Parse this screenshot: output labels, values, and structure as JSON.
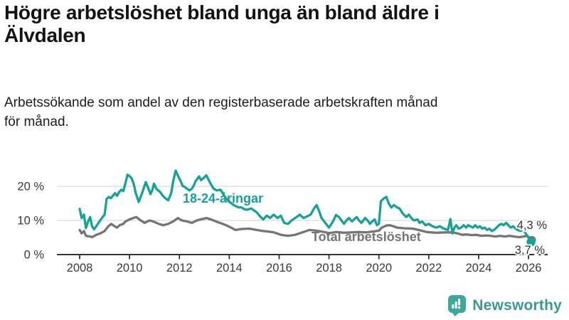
{
  "header": {
    "title_lines": [
      "Högre arbetslöshet bland unga än bland äldre i",
      "Älvdalen"
    ],
    "subtitle_lines": [
      "Arbetssökande som andel av den registerbaserade arbetskraften månad",
      "för månad."
    ]
  },
  "chart_data": {
    "type": "line",
    "title": "Högre arbetslöshet bland unga än bland äldre i Älvdalen",
    "subtitle": "Arbetssökande som andel av den registerbaserade arbetskraften månad för månad.",
    "xlabel": "",
    "ylabel": "",
    "grid": "horizontal",
    "x_axis": {
      "range": [
        2007.6,
        2026.8
      ],
      "tick_years": [
        2008,
        2010,
        2012,
        2014,
        2016,
        2018,
        2020,
        2022,
        2024,
        2026
      ]
    },
    "y_axis": {
      "range": [
        0,
        25
      ],
      "ticks": [
        {
          "v": 0,
          "label": "0 %"
        },
        {
          "v": 10,
          "label": "10 %"
        },
        {
          "v": 20,
          "label": "20 %"
        }
      ]
    },
    "colors": {
      "young": "#16a296",
      "total": "#757575",
      "axis": "#333333",
      "grid": "#d9d9d9",
      "end_label": "#333333"
    },
    "series": [
      {
        "name": "Total arbetslöshet",
        "key": "total",
        "color": "#757575",
        "last_value_label": "4,3 %",
        "last_value": 4.3,
        "end_dot": [
          2026.14,
          4.3
        ],
        "points": [
          [
            2008.0,
            7.2
          ],
          [
            2008.08,
            6.2
          ],
          [
            2008.17,
            6.9
          ],
          [
            2008.25,
            5.5
          ],
          [
            2008.42,
            5.3
          ],
          [
            2008.5,
            5.1
          ],
          [
            2008.67,
            5.8
          ],
          [
            2008.83,
            6.2
          ],
          [
            2009.0,
            6.9
          ],
          [
            2009.15,
            8.3
          ],
          [
            2009.27,
            9.0
          ],
          [
            2009.4,
            8.3
          ],
          [
            2009.5,
            7.9
          ],
          [
            2009.6,
            8.6
          ],
          [
            2009.75,
            9.0
          ],
          [
            2009.84,
            9.7
          ],
          [
            2010.0,
            10.3
          ],
          [
            2010.15,
            10.7
          ],
          [
            2010.27,
            11.0
          ],
          [
            2010.45,
            10.0
          ],
          [
            2010.6,
            9.3
          ],
          [
            2010.8,
            10.0
          ],
          [
            2010.95,
            9.7
          ],
          [
            2011.17,
            9.0
          ],
          [
            2011.35,
            8.6
          ],
          [
            2011.55,
            9.0
          ],
          [
            2011.75,
            9.7
          ],
          [
            2011.94,
            10.7
          ],
          [
            2012.1,
            10.0
          ],
          [
            2012.3,
            9.7
          ],
          [
            2012.5,
            9.3
          ],
          [
            2012.7,
            10.0
          ],
          [
            2012.85,
            10.3
          ],
          [
            2013.08,
            10.7
          ],
          [
            2013.3,
            10.2
          ],
          [
            2013.5,
            9.6
          ],
          [
            2013.7,
            9.1
          ],
          [
            2013.9,
            8.5
          ],
          [
            2014.1,
            7.8
          ],
          [
            2014.25,
            7.2
          ],
          [
            2014.5,
            7.5
          ],
          [
            2014.8,
            7.6
          ],
          [
            2015.1,
            7.2
          ],
          [
            2015.36,
            6.9
          ],
          [
            2015.6,
            6.7
          ],
          [
            2015.79,
            6.5
          ],
          [
            2016.07,
            5.8
          ],
          [
            2016.36,
            5.5
          ],
          [
            2016.64,
            5.8
          ],
          [
            2016.93,
            6.5
          ],
          [
            2017.21,
            7.2
          ],
          [
            2017.5,
            7.0
          ],
          [
            2017.8,
            6.6
          ],
          [
            2018.0,
            6.3
          ],
          [
            2018.3,
            6.6
          ],
          [
            2018.6,
            6.4
          ],
          [
            2018.9,
            6.5
          ],
          [
            2019.2,
            6.6
          ],
          [
            2019.5,
            6.5
          ],
          [
            2019.8,
            6.8
          ],
          [
            2020.0,
            7.0
          ],
          [
            2020.11,
            7.9
          ],
          [
            2020.3,
            8.5
          ],
          [
            2020.44,
            8.6
          ],
          [
            2020.58,
            8.3
          ],
          [
            2020.73,
            7.9
          ],
          [
            2021.0,
            7.7
          ],
          [
            2021.35,
            7.6
          ],
          [
            2021.6,
            7.2
          ],
          [
            2021.92,
            6.6
          ],
          [
            2022.3,
            6.4
          ],
          [
            2022.65,
            6.5
          ],
          [
            2022.96,
            6.5
          ],
          [
            2023.15,
            6.2
          ],
          [
            2023.34,
            5.8
          ],
          [
            2023.53,
            5.9
          ],
          [
            2023.72,
            5.7
          ],
          [
            2023.91,
            5.8
          ],
          [
            2024.1,
            5.5
          ],
          [
            2024.29,
            5.6
          ],
          [
            2024.48,
            5.5
          ],
          [
            2024.67,
            5.3
          ],
          [
            2024.86,
            5.5
          ],
          [
            2025.05,
            5.3
          ],
          [
            2025.24,
            5.5
          ],
          [
            2025.43,
            5.3
          ],
          [
            2025.62,
            5.1
          ],
          [
            2025.81,
            5.3
          ],
          [
            2025.95,
            5.5
          ],
          [
            2026.14,
            4.3
          ]
        ]
      },
      {
        "name": "18-24-åringar",
        "key": "young",
        "color": "#16a296",
        "last_value_label": "3,7 %",
        "last_value": 3.7,
        "end_dot": [
          2026.1,
          3.7
        ],
        "points": [
          [
            2008.0,
            13.4
          ],
          [
            2008.08,
            10.7
          ],
          [
            2008.17,
            11.7
          ],
          [
            2008.25,
            7.8
          ],
          [
            2008.33,
            9.5
          ],
          [
            2008.42,
            11.0
          ],
          [
            2008.5,
            8.3
          ],
          [
            2008.58,
            7.4
          ],
          [
            2008.75,
            9.2
          ],
          [
            2008.92,
            11.0
          ],
          [
            2009.0,
            11.7
          ],
          [
            2009.08,
            16.3
          ],
          [
            2009.17,
            16.9
          ],
          [
            2009.25,
            16.5
          ],
          [
            2009.33,
            17.2
          ],
          [
            2009.42,
            18.0
          ],
          [
            2009.5,
            17.2
          ],
          [
            2009.58,
            18.3
          ],
          [
            2009.67,
            19.0
          ],
          [
            2009.75,
            18.6
          ],
          [
            2009.83,
            20.8
          ],
          [
            2009.92,
            23.4
          ],
          [
            2010.0,
            23.0
          ],
          [
            2010.08,
            22.4
          ],
          [
            2010.17,
            20.6
          ],
          [
            2010.25,
            18.0
          ],
          [
            2010.37,
            15.4
          ],
          [
            2010.5,
            18.0
          ],
          [
            2010.65,
            21.2
          ],
          [
            2010.75,
            19.5
          ],
          [
            2010.84,
            17.7
          ],
          [
            2010.92,
            19.0
          ],
          [
            2010.98,
            20.8
          ],
          [
            2011.08,
            19.2
          ],
          [
            2011.22,
            18.4
          ],
          [
            2011.33,
            17.3
          ],
          [
            2011.42,
            16.6
          ],
          [
            2011.55,
            15.9
          ],
          [
            2011.67,
            18.0
          ],
          [
            2011.75,
            21.5
          ],
          [
            2011.85,
            24.6
          ],
          [
            2011.95,
            23.0
          ],
          [
            2012.05,
            21.5
          ],
          [
            2012.13,
            20.1
          ],
          [
            2012.22,
            19.8
          ],
          [
            2012.3,
            19.3
          ],
          [
            2012.4,
            18.8
          ],
          [
            2012.5,
            19.3
          ],
          [
            2012.58,
            20.3
          ],
          [
            2012.65,
            21.5
          ],
          [
            2012.79,
            22.9
          ],
          [
            2012.87,
            21.8
          ],
          [
            2012.95,
            22.3
          ],
          [
            2013.08,
            23.2
          ],
          [
            2013.17,
            21.9
          ],
          [
            2013.25,
            20.8
          ],
          [
            2013.36,
            19.4
          ],
          [
            2013.5,
            18.8
          ],
          [
            2013.65,
            19.0
          ],
          [
            2013.8,
            17.2
          ],
          [
            2013.92,
            16.0
          ],
          [
            2014.05,
            15.2
          ],
          [
            2014.2,
            14.4
          ],
          [
            2014.35,
            13.9
          ],
          [
            2014.5,
            13.8
          ],
          [
            2014.6,
            13.3
          ],
          [
            2014.7,
            13.1
          ],
          [
            2014.88,
            13.5
          ],
          [
            2015.0,
            12.9
          ],
          [
            2015.1,
            12.4
          ],
          [
            2015.26,
            11.0
          ],
          [
            2015.36,
            10.3
          ],
          [
            2015.5,
            11.4
          ],
          [
            2015.64,
            10.7
          ],
          [
            2015.78,
            11.7
          ],
          [
            2015.93,
            10.7
          ],
          [
            2016.07,
            11.4
          ],
          [
            2016.2,
            9.3
          ],
          [
            2016.36,
            9.0
          ],
          [
            2016.5,
            10.0
          ],
          [
            2016.7,
            11.0
          ],
          [
            2016.83,
            11.7
          ],
          [
            2016.97,
            10.7
          ],
          [
            2017.07,
            11.0
          ],
          [
            2017.26,
            11.7
          ],
          [
            2017.4,
            13.5
          ],
          [
            2017.5,
            14.5
          ],
          [
            2017.6,
            12.8
          ],
          [
            2017.7,
            10.7
          ],
          [
            2017.88,
            9.0
          ],
          [
            2018.0,
            7.9
          ],
          [
            2018.16,
            9.7
          ],
          [
            2018.28,
            11.6
          ],
          [
            2018.4,
            11.0
          ],
          [
            2018.5,
            10.0
          ],
          [
            2018.6,
            9.0
          ],
          [
            2018.7,
            10.0
          ],
          [
            2018.8,
            10.7
          ],
          [
            2018.92,
            9.7
          ],
          [
            2019.0,
            10.3
          ],
          [
            2019.11,
            11.0
          ],
          [
            2019.2,
            10.0
          ],
          [
            2019.3,
            9.3
          ],
          [
            2019.45,
            10.7
          ],
          [
            2019.55,
            10.0
          ],
          [
            2019.64,
            9.0
          ],
          [
            2019.73,
            9.7
          ],
          [
            2019.83,
            10.3
          ],
          [
            2019.92,
            8.6
          ],
          [
            2020.0,
            9.0
          ],
          [
            2020.08,
            15.6
          ],
          [
            2020.17,
            16.3
          ],
          [
            2020.3,
            16.9
          ],
          [
            2020.4,
            14.9
          ],
          [
            2020.5,
            13.8
          ],
          [
            2020.6,
            14.5
          ],
          [
            2020.73,
            13.8
          ],
          [
            2020.83,
            13.5
          ],
          [
            2020.92,
            12.4
          ],
          [
            2021.0,
            11.7
          ],
          [
            2021.1,
            11.0
          ],
          [
            2021.2,
            11.7
          ],
          [
            2021.3,
            10.7
          ],
          [
            2021.4,
            10.0
          ],
          [
            2021.55,
            10.3
          ],
          [
            2021.63,
            9.3
          ],
          [
            2021.73,
            9.7
          ],
          [
            2021.87,
            8.6
          ],
          [
            2022.0,
            9.0
          ],
          [
            2022.15,
            8.3
          ],
          [
            2022.3,
            7.9
          ],
          [
            2022.44,
            8.3
          ],
          [
            2022.6,
            7.6
          ],
          [
            2022.77,
            7.2
          ],
          [
            2022.87,
            10.4
          ],
          [
            2022.95,
            6.2
          ],
          [
            2023.03,
            7.9
          ],
          [
            2023.1,
            8.6
          ],
          [
            2023.2,
            7.6
          ],
          [
            2023.3,
            7.9
          ],
          [
            2023.4,
            8.6
          ],
          [
            2023.5,
            7.9
          ],
          [
            2023.58,
            8.6
          ],
          [
            2023.67,
            8.3
          ],
          [
            2023.77,
            7.9
          ],
          [
            2023.86,
            8.6
          ],
          [
            2023.96,
            7.9
          ],
          [
            2024.05,
            8.3
          ],
          [
            2024.15,
            7.6
          ],
          [
            2024.24,
            7.9
          ],
          [
            2024.34,
            7.2
          ],
          [
            2024.43,
            7.6
          ],
          [
            2024.53,
            6.9
          ],
          [
            2024.62,
            7.2
          ],
          [
            2024.72,
            7.9
          ],
          [
            2024.81,
            8.6
          ],
          [
            2024.91,
            9.0
          ],
          [
            2025.0,
            8.6
          ],
          [
            2025.1,
            9.3
          ],
          [
            2025.19,
            8.6
          ],
          [
            2025.29,
            7.9
          ],
          [
            2025.38,
            8.3
          ],
          [
            2025.48,
            7.6
          ],
          [
            2025.57,
            7.2
          ],
          [
            2025.67,
            6.9
          ],
          [
            2025.76,
            7.2
          ],
          [
            2025.86,
            6.5
          ],
          [
            2025.95,
            5.5
          ],
          [
            2026.05,
            4.4
          ],
          [
            2026.1,
            3.7
          ]
        ]
      }
    ],
    "annotations": {
      "series_labels": [
        {
          "text": "18-24-åringar",
          "x": 257,
          "y": 285,
          "color": "#16a296"
        },
        {
          "text": "Total arbetslöshet",
          "x": 438,
          "y": 339,
          "color": "#757575"
        }
      ],
      "end_labels": [
        {
          "text": "4,3 %",
          "x": 769,
          "y": 322
        },
        {
          "text": "3,7 %",
          "x": 766,
          "y": 357
        }
      ]
    },
    "legend": "inline-labels"
  },
  "footer": {
    "brand_name": "Newsworthy"
  }
}
